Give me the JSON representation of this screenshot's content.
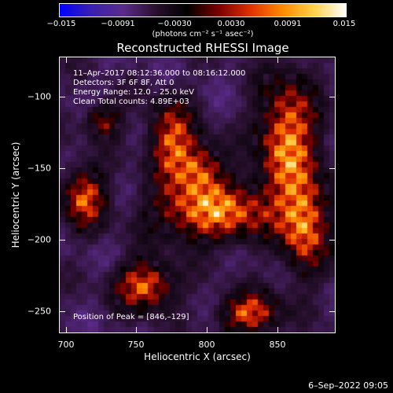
{
  "colorbar": {
    "tick_labels": [
      "−0.015",
      "−0.0091",
      "−0.0030",
      "0.0030",
      "0.0091",
      "0.015"
    ],
    "min": -0.015,
    "max": 0.015,
    "units": "(photons cm⁻² s⁻¹ asec⁻²)",
    "colormap": [
      "#0000ff",
      "#3a20b0",
      "#5b2b8a",
      "#2a1030",
      "#000000",
      "#7a0000",
      "#e03000",
      "#ff8a00",
      "#ffd24a",
      "#ffffff"
    ]
  },
  "plot": {
    "title": "Reconstructed RHESSI Image",
    "annotations": {
      "time_range": "11–Apr–2017 08:12:36.000 to 08:16:12.000",
      "detectors": "Detectors: 3F 6F 8F, Att 0",
      "energy": "Energy Range: 12.0 – 25.0 keV",
      "clean": "Clean    Total counts: 4.89E+03",
      "peak": "Position of Peak = [846,–129]"
    },
    "xlabel": "Heliocentric X (arcsec)",
    "ylabel": "Heliocentric Y (arcsec)",
    "xticks": [
      "700",
      "750",
      "800",
      "850"
    ],
    "yticks": [
      "−100",
      "−150",
      "−200",
      "−250"
    ],
    "xrange": [
      695,
      887
    ],
    "yrange": [
      -270,
      -78
    ]
  },
  "footer": {
    "datestamp": "6–Sep–2022 09:05"
  }
}
